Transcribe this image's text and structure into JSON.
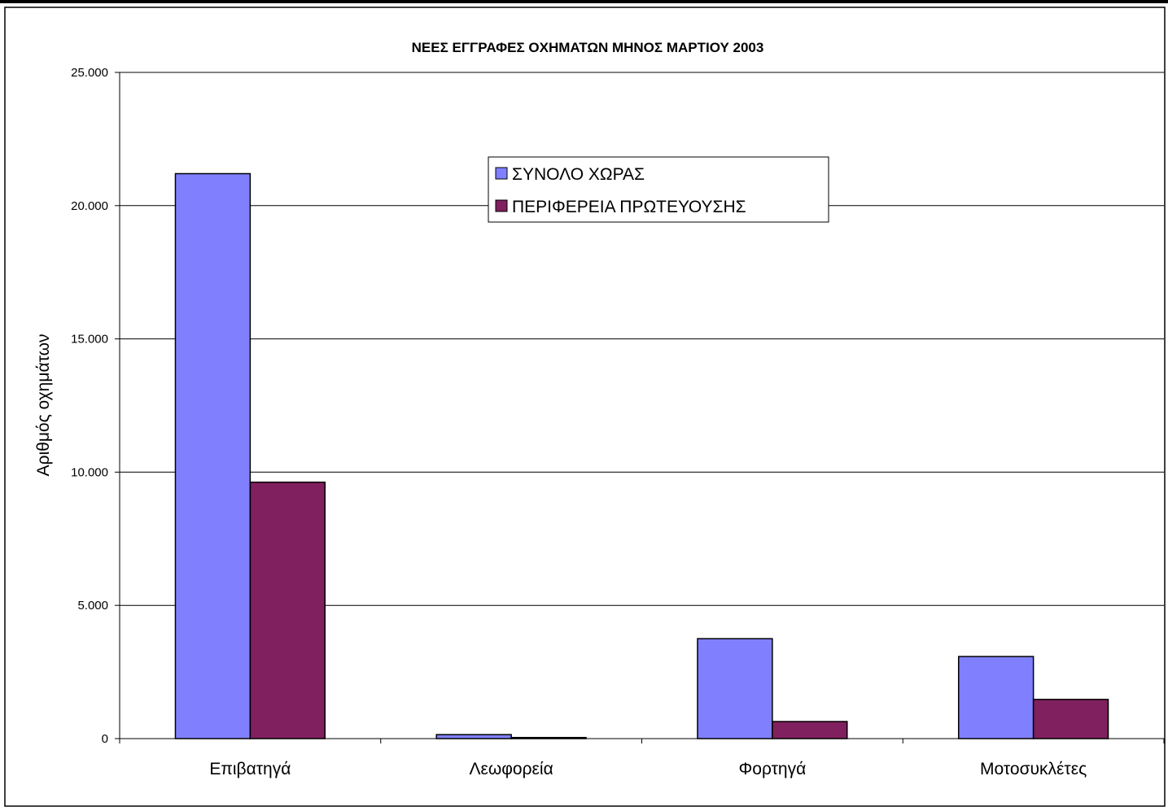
{
  "chart_data": {
    "type": "bar",
    "title": "ΝΕΕΣ ΕΓΓΡΑΦΕΣ ΟΧΗΜΑΤΩΝ ΜΗΝΟΣ ΜΑΡΤΙΟΥ  2003",
    "xlabel": "",
    "ylabel": "Αριθμός οχημάτων",
    "categories": [
      "Επιβατηγά",
      "Λεωφορεία",
      "Φορτηγά",
      "Μοτοσυκλέτες"
    ],
    "series": [
      {
        "name": "ΣΥΝΟΛΟ ΧΩΡΑΣ",
        "values": [
          21200,
          150,
          3750,
          3080
        ],
        "color": "#8080ff"
      },
      {
        "name": "ΠΕΡΙΦΕΡΕΙΑ ΠΡΩΤΕΥΟΥΣΗΣ",
        "values": [
          9620,
          40,
          640,
          1470
        ],
        "color": "#80205e"
      }
    ],
    "ylim": [
      0,
      25000
    ],
    "yticks": [
      0,
      5000,
      10000,
      15000,
      20000,
      25000
    ],
    "ytick_labels": [
      "0",
      "5.000",
      "10.000",
      "15.000",
      "20.000",
      "25.000"
    ],
    "grid": true,
    "legend_position": "top-center"
  }
}
